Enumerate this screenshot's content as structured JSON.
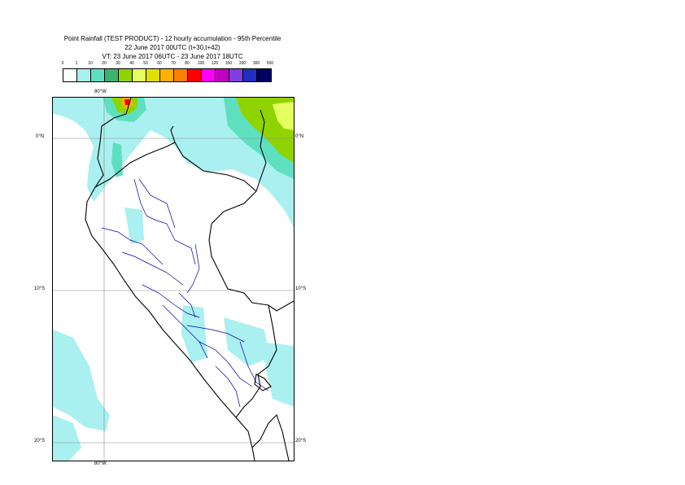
{
  "title": {
    "line1": "Point Rainfall (TEST PRODUCT) - 12 hourly accumulation - 95th Percentile",
    "line2": "22 June 2017 00UTC (t+30,t+42)",
    "line3": "VT: 23 June 2017 06UTC - 23 June 2017 18UTC"
  },
  "legend": {
    "labels": [
      "0",
      "1",
      "10",
      "20",
      "30",
      "40",
      "50",
      "60",
      "70",
      "80",
      "100",
      "125",
      "150",
      "200",
      "300",
      "500"
    ],
    "colors": [
      "#ffffff",
      "#aaf0f0",
      "#5ee0c0",
      "#3cb371",
      "#8fd400",
      "#e6ff60",
      "#e0e000",
      "#ffb000",
      "#ff8000",
      "#ff0000",
      "#ff00ff",
      "#c000c0",
      "#8040e0",
      "#2030c0",
      "#000060"
    ]
  },
  "axes": {
    "top_lon": "80°W",
    "bottom_lon": "80°W",
    "lat_0_left": "0°N",
    "lat_0_right": "0°N",
    "lat_10_left": "10°S",
    "lat_10_right": "10°S",
    "lat_20_left": "20°S",
    "lat_20_right": "20°S"
  },
  "colors": {
    "border": "#000000",
    "regions": "#0000aa",
    "grid": "#888888"
  }
}
